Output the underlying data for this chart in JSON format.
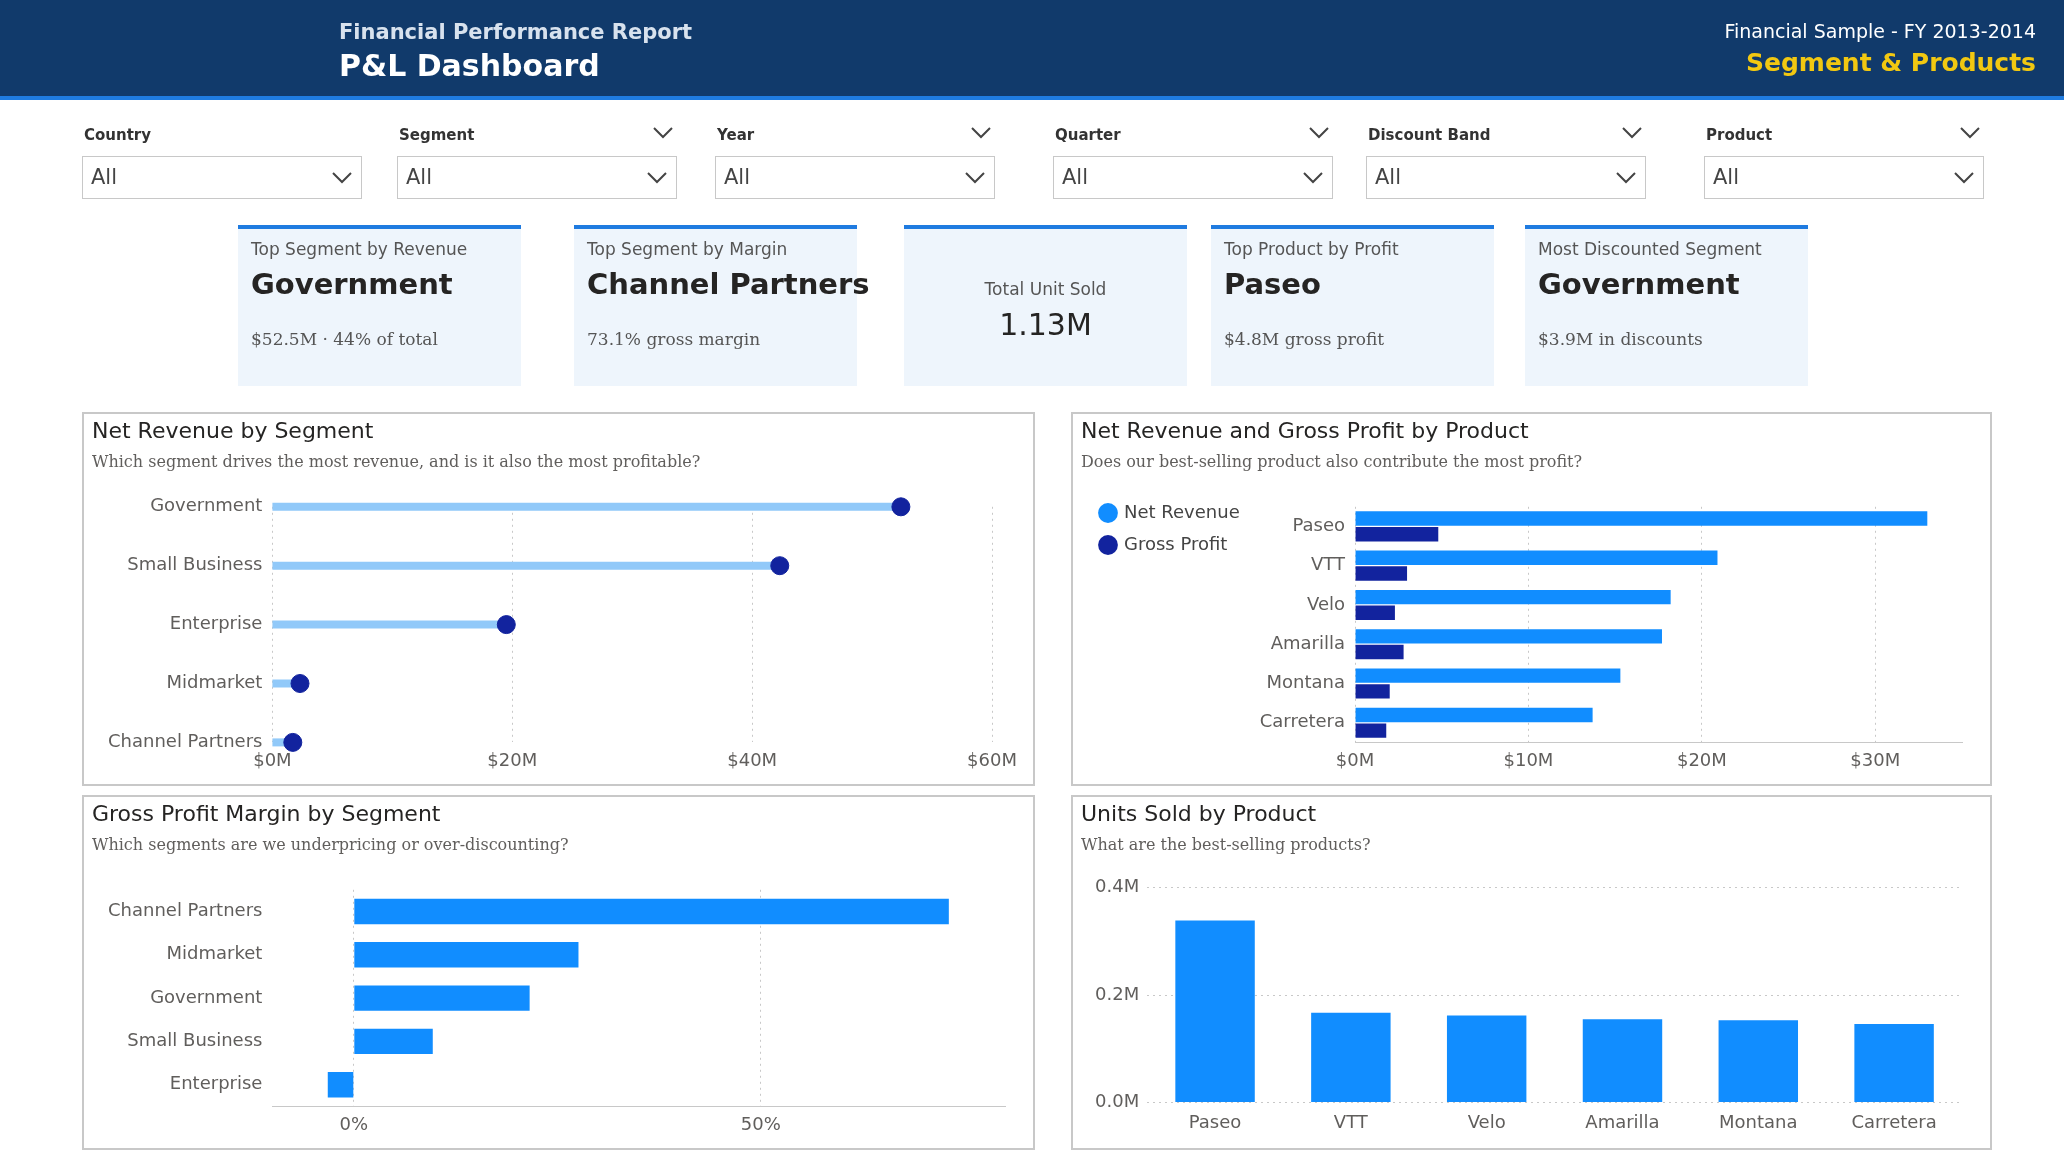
{
  "chart_data": [
    {
      "type": "other",
      "title": "P&L Dashboard",
      "subtitle": "Financial Performance Report",
      "annotations": [
        "Financial Sample - FY 2013-2014",
        "Segment & Products"
      ]
    },
    {
      "type": "other",
      "annotations": [
        "Country",
        "All",
        "Segment",
        "All",
        "Year",
        "All",
        "Quarter",
        "All",
        "Discount Band",
        "All",
        "Product",
        "All"
      ]
    },
    {
      "type": "other",
      "title": "Top Segment by Revenue",
      "subtitle": "Government",
      "annotations": [
        "$52.5M · 44% of total"
      ]
    },
    {
      "type": "other",
      "title": "Top Segment by Margin",
      "subtitle": "Channel Partners",
      "annotations": [
        "73.1% gross margin"
      ]
    },
    {
      "type": "other",
      "title": "Total Unit Sold",
      "subtitle": "1.13M"
    },
    {
      "type": "other",
      "title": "Top Product by Profit",
      "subtitle": "Paseo",
      "annotations": [
        "$4.8M gross profit"
      ]
    },
    {
      "type": "other",
      "title": "Most Discounted Segment",
      "subtitle": "Government",
      "annotations": [
        "$3.9M in discounts"
      ]
    },
    {
      "type": "lollipop",
      "title": "Net Revenue by Segment",
      "subtitle": "Which segment drives the most revenue, and is it also the most profitable?",
      "orientation": "horizontal",
      "categories": [
        "Government",
        "Small Business",
        "Enterprise",
        "Midmarket",
        "Channel Partners"
      ],
      "series": [
        {
          "color": "#12239e",
          "values": [
            52.4,
            42.3,
            19.5,
            2.3,
            1.7
          ]
        }
      ],
      "xlim": [
        0,
        60
      ],
      "xticks": [
        {
          "value": 0,
          "label": "$0M"
        },
        {
          "value": 20,
          "label": "$20M"
        },
        {
          "value": 40,
          "label": "$40M"
        },
        {
          "value": 60,
          "label": "$60M"
        }
      ],
      "grid": "x"
    },
    {
      "type": "bar",
      "title": "Net Revenue and Gross Profit by Product",
      "subtitle": "Does our best-selling product also contribute the most profit?",
      "orientation": "horizontal",
      "categories": [
        "Paseo",
        "VTT",
        "Velo",
        "Amarilla",
        "Montana",
        "Carretera"
      ],
      "series": [
        {
          "name": "Net Revenue",
          "color": "#118dff",
          "values": [
            33.0,
            20.9,
            18.2,
            17.7,
            15.3,
            13.7
          ]
        },
        {
          "name": "Gross Profit",
          "color": "#12239e",
          "values": [
            4.8,
            3.0,
            2.3,
            2.8,
            2.0,
            1.8
          ]
        }
      ],
      "xlim": [
        0,
        35
      ],
      "xticks": [
        {
          "value": 0,
          "label": "$0M"
        },
        {
          "value": 10,
          "label": "$10M"
        },
        {
          "value": 20,
          "label": "$20M"
        },
        {
          "value": 30,
          "label": "$30M"
        }
      ],
      "grid": "x",
      "legend": "top left"
    },
    {
      "type": "bar",
      "title": "Gross Profit Margin by Segment",
      "subtitle": "Which segments are we underpricing or over-discounting?",
      "orientation": "horizontal",
      "categories": [
        "Channel Partners",
        "Midmarket",
        "Government",
        "Small Business",
        "Enterprise"
      ],
      "values": [
        73.1,
        27.6,
        21.6,
        9.7,
        -3.2
      ],
      "color": "#118dff",
      "xlim": [
        -10,
        80
      ],
      "xticks": [
        {
          "value": 0,
          "label": "0%"
        },
        {
          "value": 50,
          "label": "50%"
        }
      ],
      "grid": "x"
    },
    {
      "type": "bar",
      "title": "Units Sold by Product",
      "subtitle": "What are the best-selling products?",
      "categories": [
        "Paseo",
        "VTT",
        "Velo",
        "Amarilla",
        "Montana",
        "Carretera"
      ],
      "values": [
        0.339,
        0.167,
        0.162,
        0.155,
        0.153,
        0.146
      ],
      "color": "#118dff",
      "ylim": [
        0,
        0.4
      ],
      "yticks": [
        {
          "value": 0,
          "label": "0.0M"
        },
        {
          "value": 0.2,
          "label": "0.2M"
        },
        {
          "value": 0.4,
          "label": "0.4M"
        }
      ],
      "grid": "y"
    }
  ]
}
